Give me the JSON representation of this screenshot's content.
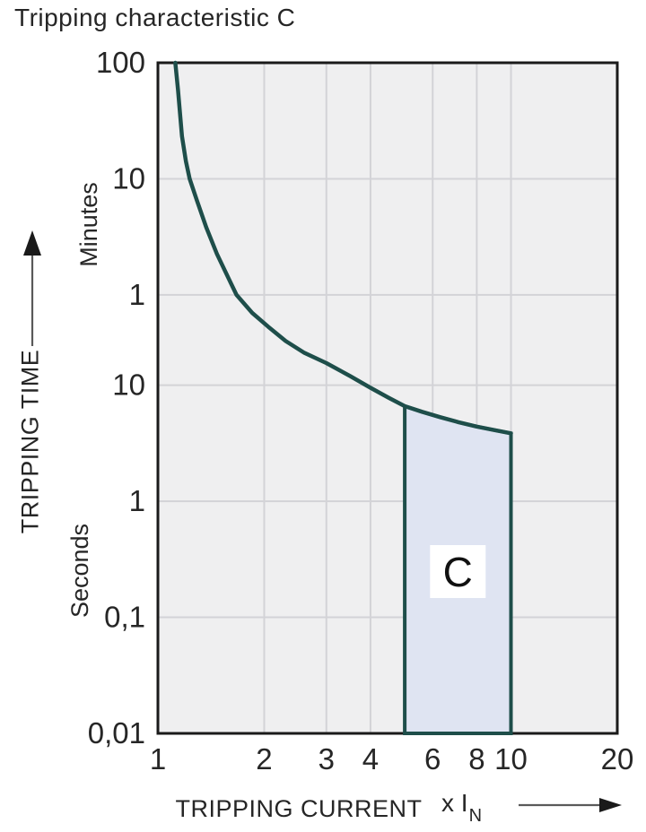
{
  "title": "Tripping characteristic C",
  "colors": {
    "text": "#262626",
    "plot_bg": "#efeff0",
    "gridline": "#d3d3d7",
    "plot_border": "#1a1a1a",
    "curve": "#1e4e4a",
    "region_fill": "#dfe4f2",
    "region_label_bg": "#ffffff",
    "arrow_shaft": "#5a5a5a",
    "arrow_head": "#1a1a1a"
  },
  "y_axis": {
    "title": "TRIPPING TIME",
    "unit_upper": "Minutes",
    "unit_lower": "Seconds",
    "minute_ticks": [
      {
        "label": "100",
        "seconds": 6000
      },
      {
        "label": "10",
        "seconds": 600
      },
      {
        "label": "1",
        "seconds": 60
      }
    ],
    "second_ticks": [
      {
        "label": "10",
        "seconds": 10
      },
      {
        "label": "1",
        "seconds": 1
      },
      {
        "label": "0,1",
        "seconds": 0.1
      },
      {
        "label": "0,01",
        "seconds": 0.01
      }
    ]
  },
  "x_axis": {
    "title": "TRIPPING CURRENT",
    "unit_prefix": "x I",
    "unit_subscript": "N",
    "ticks": [
      "1",
      "2",
      "3",
      "4",
      "6",
      "8",
      "10",
      "20"
    ]
  },
  "chart_data": {
    "type": "line",
    "title": "Tripping characteristic C",
    "xlabel": "TRIPPING CURRENT (x IN)",
    "ylabel": "TRIPPING TIME (minutes / seconds)",
    "x_scale": "log",
    "y_scale": "log",
    "xlim": [
      1,
      20
    ],
    "ylim_seconds": [
      0.01,
      6000
    ],
    "x_tick_values": [
      1,
      2,
      3,
      4,
      6,
      8,
      10,
      20
    ],
    "y_tick_values_minutes": [
      100,
      10,
      1
    ],
    "y_tick_values_seconds": [
      10,
      1,
      0.1,
      0.01
    ],
    "grid_x": [
      2,
      3,
      4,
      6,
      8,
      10
    ],
    "grid_t_seconds": [
      600,
      60,
      10,
      1,
      0.1
    ],
    "series": [
      {
        "name": "tripping-time-curve",
        "points_x_multiple_vs_seconds": [
          [
            1.12,
            6000
          ],
          [
            1.14,
            3500
          ],
          [
            1.17,
            1400
          ],
          [
            1.2,
            850
          ],
          [
            1.23,
            600
          ],
          [
            1.29,
            390
          ],
          [
            1.37,
            230
          ],
          [
            1.47,
            135
          ],
          [
            1.58,
            85
          ],
          [
            1.67,
            60
          ],
          [
            1.85,
            42
          ],
          [
            2.05,
            32
          ],
          [
            2.3,
            24
          ],
          [
            2.6,
            19
          ],
          [
            3.0,
            15.5
          ],
          [
            3.5,
            12
          ],
          [
            4.0,
            9.5
          ],
          [
            4.5,
            7.8
          ],
          [
            5.0,
            6.6
          ],
          [
            5.6,
            5.9
          ],
          [
            6.3,
            5.3
          ],
          [
            7.1,
            4.8
          ],
          [
            8.0,
            4.4
          ],
          [
            9.0,
            4.1
          ],
          [
            10.0,
            3.85
          ]
        ]
      }
    ],
    "region": {
      "label": "C",
      "x_range": [
        5,
        10
      ],
      "t_bottom_seconds": 0.01,
      "top_boundary_points": [
        [
          5.0,
          6.6
        ],
        [
          5.6,
          5.9
        ],
        [
          6.3,
          5.3
        ],
        [
          7.1,
          4.8
        ],
        [
          8.0,
          4.4
        ],
        [
          9.0,
          4.1
        ],
        [
          10.0,
          3.85
        ]
      ]
    }
  }
}
